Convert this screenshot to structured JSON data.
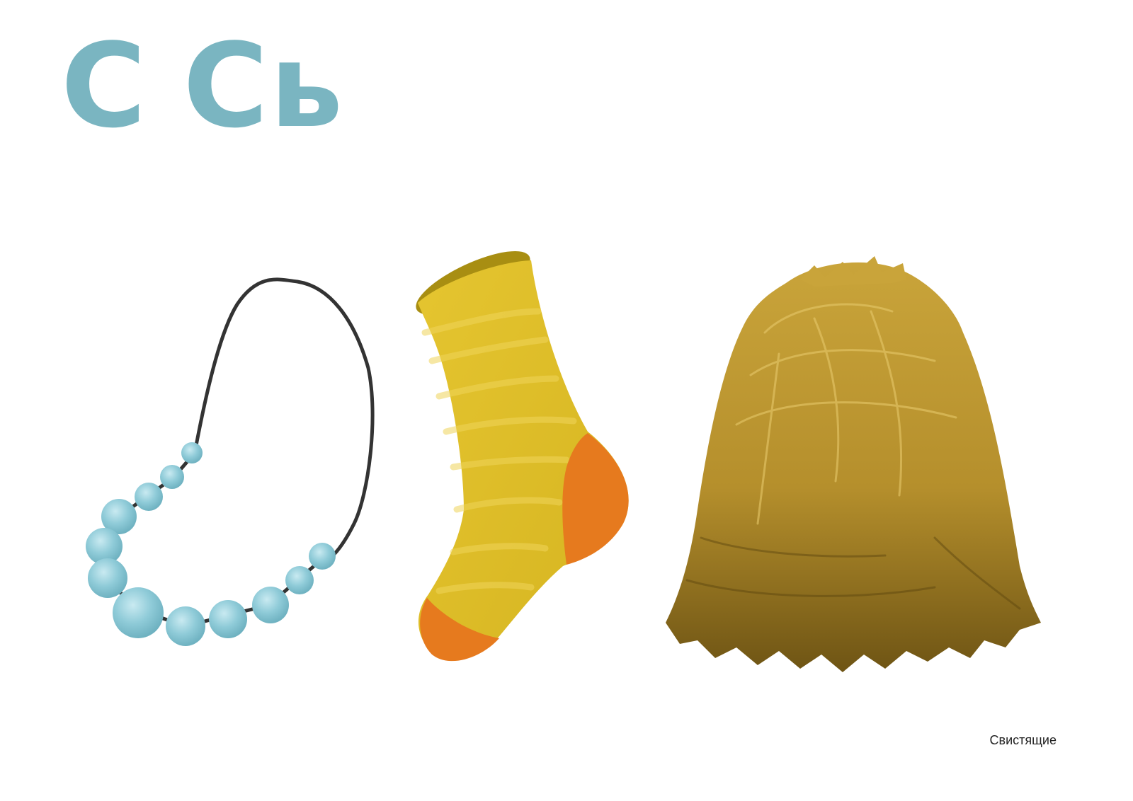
{
  "heading": {
    "letter_hard": "С",
    "letter_soft": "Сь",
    "color": "#7ab5c1"
  },
  "illustrations": [
    {
      "icon": "beads-necklace-icon",
      "colors": {
        "cord": "#333333",
        "bead": "#8fcbd8"
      }
    },
    {
      "icon": "sock-icon",
      "colors": {
        "body": "#e2c42c",
        "heel": "#e87722"
      }
    },
    {
      "icon": "haystack-icon",
      "colors": {
        "hay": "#b8952a"
      }
    }
  ],
  "footer": {
    "category_label": "Свистящие"
  }
}
